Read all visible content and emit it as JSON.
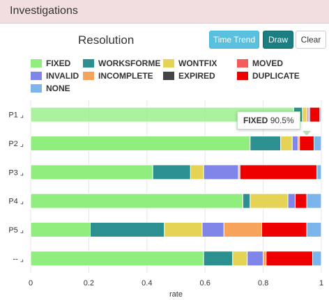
{
  "header": {
    "title": "Investigations"
  },
  "controls": {
    "time_trend_label": "Time Trend",
    "draw_label": "Draw",
    "clear_label": "Clear"
  },
  "tooltip": {
    "label": "FIXED",
    "value": "90.5%"
  },
  "chart_data": {
    "type": "bar",
    "orientation": "horizontal",
    "stacked": true,
    "title": "Resolution",
    "xlabel": "rate",
    "ylabel": "",
    "xlim": [
      0,
      1
    ],
    "x_ticks": [
      "0",
      "0.2",
      "0.4",
      "0.6",
      "0.8",
      "1"
    ],
    "grid": true,
    "legend_position": "top",
    "categories": [
      "P1",
      "P2",
      "P3",
      "P4",
      "P5",
      "--"
    ],
    "category_suffix": "⌟",
    "series": [
      {
        "name": "FIXED",
        "color": "#90ee7e",
        "values": [
          0.905,
          0.755,
          0.42,
          0.73,
          0.205,
          0.595
        ]
      },
      {
        "name": "WORKSFORME",
        "color": "#2b908f",
        "values": [
          0.03,
          0.105,
          0.13,
          0.025,
          0.255,
          0.1
        ]
      },
      {
        "name": "WONTFIX",
        "color": "#e4d354",
        "values": [
          0.015,
          0.04,
          0.045,
          0.13,
          0.13,
          0.05
        ]
      },
      {
        "name": "MOVED",
        "color": "#f45b5b",
        "values": [
          0.005,
          0.0,
          0.0,
          0.0,
          0.0,
          0.0
        ]
      },
      {
        "name": "INVALID",
        "color": "#8085e9",
        "values": [
          0.005,
          0.02,
          0.12,
          0.025,
          0.075,
          0.055
        ]
      },
      {
        "name": "INCOMPLETE",
        "color": "#f7a35c",
        "values": [
          0.0,
          0.005,
          0.005,
          0.0,
          0.13,
          0.01
        ]
      },
      {
        "name": "EXPIRED",
        "color": "#434348",
        "values": [
          0.0,
          0.0,
          0.0,
          0.0,
          0.0,
          0.0
        ]
      },
      {
        "name": "DUPLICATE",
        "color": "#ee0000",
        "values": [
          0.035,
          0.05,
          0.265,
          0.04,
          0.155,
          0.16
        ]
      },
      {
        "name": "NONE",
        "color": "#7cb5ec",
        "values": [
          0.005,
          0.025,
          0.015,
          0.05,
          0.05,
          0.03
        ]
      }
    ]
  }
}
